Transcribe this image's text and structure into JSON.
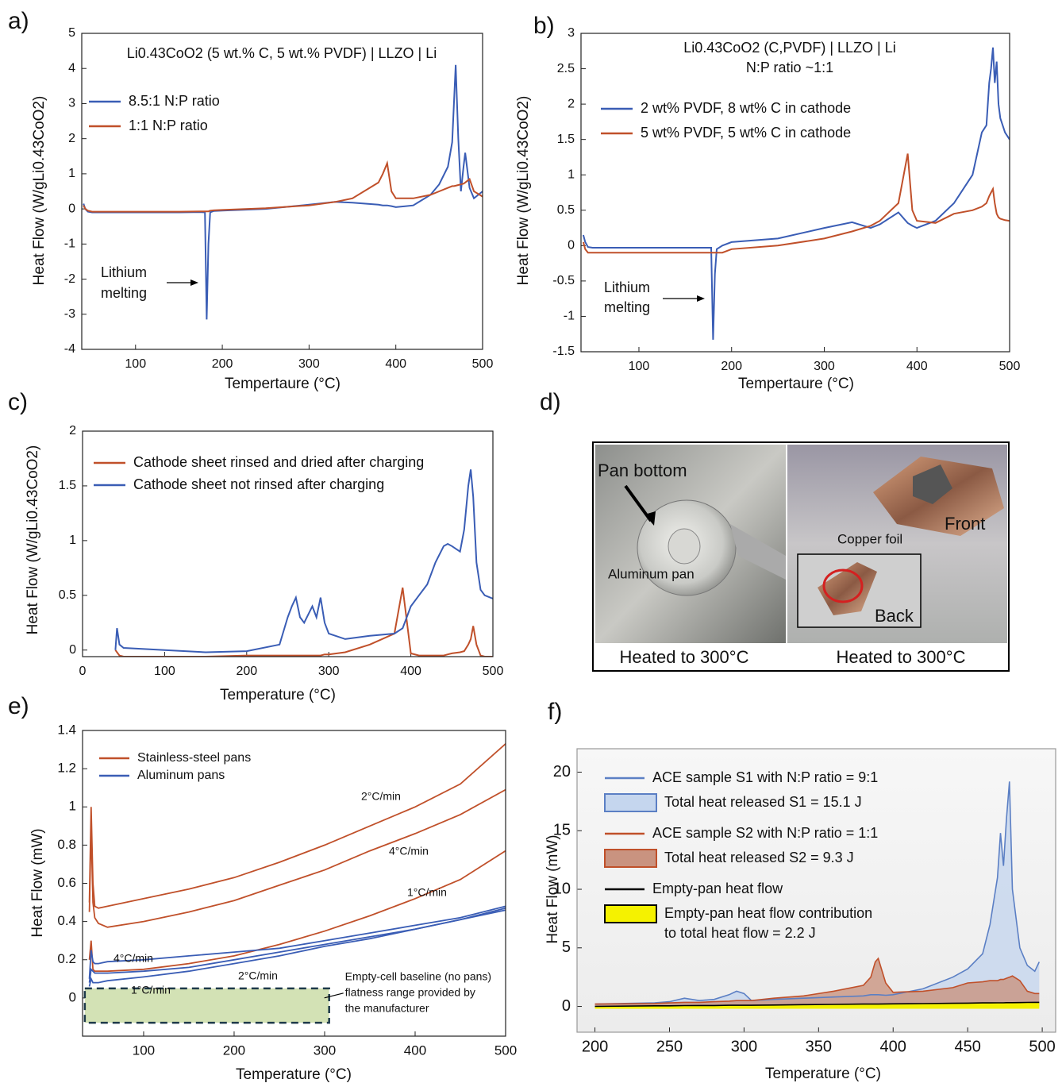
{
  "chart_data": [
    {
      "type": "line",
      "panel": "a)",
      "title": [
        "Li0.43CoO2 (5 wt.% C, 5 wt.% PVDF) | LLZO | Li"
      ],
      "x_label": "Tempertaure (°C)",
      "y_label": "Heat Flow (W/gLi0.43CoO2)",
      "xlim": [
        38,
        500
      ],
      "xticks": [
        100,
        200,
        300,
        400,
        500
      ],
      "ylim": [
        -4,
        5
      ],
      "yticks": [
        -4,
        -3,
        -2,
        -1,
        0,
        1,
        2,
        3,
        4,
        5
      ],
      "legend": "upper left",
      "annotation": [
        "Lithium",
        "melting"
      ],
      "x": [
        40,
        42,
        45,
        50,
        100,
        150,
        175,
        180,
        182,
        184,
        186,
        190,
        200,
        250,
        300,
        330,
        350,
        380,
        385,
        390,
        395,
        400,
        420,
        440,
        450,
        460,
        465,
        467,
        469,
        472,
        475,
        478,
        480,
        485,
        490,
        500
      ],
      "series": [
        {
          "name": "8.5:1 N:P ratio",
          "color": "#3a5db5",
          "values": [
            0.15,
            0,
            -0.08,
            -0.1,
            -0.1,
            -0.1,
            -0.09,
            -0.1,
            -3.15,
            -1,
            -0.1,
            -0.06,
            -0.05,
            0,
            0.12,
            0.2,
            0.18,
            0.12,
            0.1,
            0.1,
            0.08,
            0.05,
            0.1,
            0.4,
            0.7,
            1.2,
            1.9,
            3.0,
            4.1,
            2.0,
            0.5,
            1.2,
            1.6,
            0.6,
            0.3,
            0.5
          ]
        },
        {
          "name": "1:1 N:P ratio",
          "color": "#c0502a",
          "values": [
            0.1,
            0,
            -0.05,
            -0.08,
            -0.08,
            -0.08,
            -0.07,
            -0.07,
            -0.07,
            -0.07,
            -0.05,
            -0.04,
            -0.03,
            0.02,
            0.1,
            0.2,
            0.3,
            0.75,
            1.0,
            1.3,
            0.5,
            0.3,
            0.3,
            0.4,
            0.5,
            0.6,
            0.65,
            0.65,
            0.66,
            0.68,
            0.7,
            0.72,
            0.75,
            0.85,
            0.5,
            0.35
          ]
        }
      ]
    },
    {
      "type": "line",
      "panel": "b)",
      "title": [
        "Li0.43CoO2 (C,PVDF) | LLZO | Li",
        "N:P ratio ~1:1"
      ],
      "x_label": "Tempertaure (°C)",
      "y_label": "Heat Flow (W/gLi0.43CoO2)",
      "xlim": [
        37.5,
        500
      ],
      "xticks": [
        100,
        200,
        300,
        400,
        500
      ],
      "ylim": [
        -1.5,
        3
      ],
      "yticks": [
        -1.5,
        -1,
        -0.5,
        0,
        0.5,
        1,
        1.5,
        2,
        2.5,
        3
      ],
      "legend": "upper left",
      "annotation": [
        "Lithium",
        "melting"
      ],
      "x": [
        40,
        42,
        45,
        50,
        100,
        150,
        175,
        178,
        180,
        182,
        184,
        190,
        200,
        250,
        300,
        330,
        350,
        360,
        380,
        390,
        395,
        400,
        420,
        440,
        460,
        470,
        475,
        478,
        480,
        482,
        484,
        486,
        488,
        490,
        495,
        500
      ],
      "series": [
        {
          "name": "2 wt% PVDF, 8 wt% C in cathode",
          "color": "#3a5db5",
          "values": [
            0.15,
            0.05,
            -0.02,
            -0.03,
            -0.03,
            -0.03,
            -0.03,
            -0.03,
            -1.33,
            -0.4,
            -0.05,
            0,
            0.05,
            0.1,
            0.25,
            0.33,
            0.25,
            0.3,
            0.47,
            0.32,
            0.28,
            0.25,
            0.35,
            0.6,
            1.0,
            1.6,
            1.7,
            2.3,
            2.5,
            2.8,
            2.3,
            2.6,
            2.0,
            1.8,
            1.6,
            1.5
          ]
        },
        {
          "name": "5 wt% PVDF, 5 wt% C in cathode",
          "color": "#c0502a",
          "values": [
            0.05,
            -0.05,
            -0.1,
            -0.1,
            -0.1,
            -0.1,
            -0.1,
            -0.1,
            -0.1,
            -0.1,
            -0.1,
            -0.1,
            -0.05,
            0.0,
            0.1,
            0.2,
            0.28,
            0.35,
            0.6,
            1.3,
            0.5,
            0.35,
            0.32,
            0.45,
            0.5,
            0.55,
            0.6,
            0.7,
            0.75,
            0.8,
            0.6,
            0.45,
            0.4,
            0.38,
            0.36,
            0.35
          ]
        }
      ]
    },
    {
      "type": "line",
      "panel": "c)",
      "x_label": "Temperature (°C)",
      "y_label": "Heat Flow (W/gLi0.43CoO2)",
      "xlim": [
        0,
        500
      ],
      "xticks": [
        0,
        100,
        200,
        300,
        400,
        500
      ],
      "ylim": [
        -0.06,
        2
      ],
      "yticks": [
        0,
        0.5,
        1,
        1.5,
        2
      ],
      "legend": "upper left",
      "x": [
        40,
        42,
        45,
        50,
        100,
        150,
        200,
        240,
        250,
        255,
        260,
        265,
        270,
        280,
        285,
        290,
        295,
        300,
        320,
        350,
        380,
        390,
        400,
        410,
        420,
        430,
        440,
        445,
        450,
        460,
        465,
        470,
        473,
        476,
        480,
        485,
        490,
        500
      ],
      "series": [
        {
          "name": "Cathode sheet rinsed and dried after charging",
          "color": "#c0502a",
          "values": [
            0,
            -0.02,
            -0.05,
            -0.06,
            -0.06,
            -0.06,
            -0.05,
            -0.05,
            -0.05,
            -0.05,
            -0.05,
            -0.05,
            -0.05,
            -0.05,
            -0.05,
            -0.05,
            -0.04,
            -0.04,
            -0.02,
            0.05,
            0.15,
            0.57,
            -0.03,
            -0.05,
            -0.05,
            -0.05,
            -0.05,
            -0.04,
            -0.03,
            -0.02,
            -0.01,
            0.05,
            0.1,
            0.22,
            0.05,
            -0.05,
            -0.06,
            -0.06
          ]
        },
        {
          "name": "Cathode sheet not rinsed after charging",
          "color": "#3a5db5",
          "values": [
            0,
            0.2,
            0.05,
            0.02,
            0,
            -0.02,
            -0.01,
            0.05,
            0.3,
            0.4,
            0.48,
            0.3,
            0.25,
            0.4,
            0.3,
            0.48,
            0.25,
            0.15,
            0.1,
            0.13,
            0.15,
            0.2,
            0.4,
            0.5,
            0.6,
            0.8,
            0.95,
            0.97,
            0.95,
            0.9,
            1.1,
            1.5,
            1.65,
            1.4,
            0.8,
            0.55,
            0.5,
            0.47
          ]
        }
      ]
    },
    {
      "type": "multiline",
      "panel": "e)",
      "x_label": "Temperature (°C)",
      "y_label": "Heat Flow (mW)",
      "xlim": [
        32.5,
        500
      ],
      "xticks": [
        100,
        200,
        300,
        400,
        500
      ],
      "ylim": [
        -0.2,
        1.4
      ],
      "yticks": [
        0,
        0.2,
        0.4,
        0.6,
        0.8,
        1,
        1.2,
        1.4
      ],
      "legend": "upper left",
      "x": [
        40,
        42,
        44,
        46,
        50,
        60,
        100,
        150,
        200,
        250,
        300,
        350,
        400,
        450,
        500
      ],
      "series": [
        {
          "name": "Stainless-steel pans",
          "color": "#c0502a",
          "lines": [
            {
              "label": "2°C/min",
              "values": [
                0.5,
                1.0,
                0.6,
                0.48,
                0.47,
                0.48,
                0.52,
                0.57,
                0.63,
                0.71,
                0.8,
                0.9,
                1.0,
                1.12,
                1.33
              ]
            },
            {
              "label": "4°C/min",
              "values": [
                0.45,
                0.9,
                0.5,
                0.42,
                0.39,
                0.37,
                0.4,
                0.45,
                0.51,
                0.59,
                0.67,
                0.77,
                0.86,
                0.96,
                1.09
              ]
            },
            {
              "label": "1°C/min",
              "values": [
                0.2,
                0.3,
                0.15,
                0.14,
                0.14,
                0.14,
                0.15,
                0.18,
                0.22,
                0.28,
                0.35,
                0.43,
                0.52,
                0.62,
                0.77
              ]
            }
          ]
        },
        {
          "name": "Aluminum pans",
          "color": "#3a5db5",
          "lines": [
            {
              "label": "4°C/min",
              "values": [
                0.1,
                0.25,
                0.19,
                0.18,
                0.18,
                0.19,
                0.2,
                0.22,
                0.24,
                0.26,
                0.3,
                0.34,
                0.38,
                0.42,
                0.48
              ]
            },
            {
              "label": "2°C/min",
              "values": [
                0.08,
                0.15,
                0.14,
                0.13,
                0.13,
                0.13,
                0.14,
                0.16,
                0.2,
                0.24,
                0.28,
                0.32,
                0.36,
                0.41,
                0.47
              ]
            },
            {
              "label": "1°C/min",
              "values": [
                0.06,
                0.1,
                0.08,
                0.08,
                0.08,
                0.09,
                0.11,
                0.14,
                0.18,
                0.22,
                0.27,
                0.31,
                0.36,
                0.41,
                0.46
              ]
            }
          ]
        }
      ],
      "baseline_band": {
        "xlim": [
          35,
          305
        ],
        "ylim": [
          -0.13,
          0.05
        ],
        "color": "#d3e2b5",
        "lines": [
          "Empty-cell baseline (no pans)",
          "flatness range provided by",
          "the manufacturer"
        ]
      }
    },
    {
      "type": "area",
      "panel": "f)",
      "x_label": "Temperature (°C)",
      "y_label": "Heat Flow (mW)",
      "xlim": [
        188,
        509
      ],
      "xticks": [
        200,
        250,
        300,
        350,
        400,
        450,
        500
      ],
      "ylim": [
        -2.2,
        22
      ],
      "yticks": [
        0,
        5,
        10,
        15,
        20
      ],
      "legend": "upper left",
      "x": [
        200,
        240,
        250,
        260,
        270,
        280,
        290,
        295,
        300,
        305,
        320,
        340,
        360,
        380,
        385,
        388,
        390,
        395,
        400,
        420,
        440,
        450,
        460,
        465,
        470,
        472,
        474,
        476,
        478,
        480,
        485,
        490,
        495,
        498
      ],
      "series": [
        {
          "name": "ACE sample S1 with N:P ratio = 9:1",
          "area_name": [
            "Total heat released S1  = 15.1 J"
          ],
          "color": "#5b7fc4",
          "fill_color": "#c5d6ee",
          "values": [
            0.2,
            0.3,
            0.4,
            0.7,
            0.5,
            0.6,
            1.0,
            1.3,
            1.1,
            0.5,
            0.6,
            0.7,
            0.8,
            0.9,
            1.0,
            1.0,
            1.0,
            0.95,
            1.0,
            1.5,
            2.5,
            3.2,
            4.5,
            7,
            11,
            14.8,
            12,
            16,
            19.2,
            10,
            5,
            3.5,
            3.0,
            3.8
          ]
        },
        {
          "name": "ACE sample S2 with N:P ratio = 1:1",
          "area_name": [
            "Total heat released S2 = 9.3 J"
          ],
          "color": "#c0502a",
          "fill_color": "#c99380",
          "values": [
            0.2,
            0.25,
            0.3,
            0.35,
            0.35,
            0.4,
            0.45,
            0.5,
            0.5,
            0.5,
            0.7,
            0.9,
            1.3,
            1.8,
            2.5,
            3.8,
            4.1,
            2.0,
            1.2,
            1.3,
            1.6,
            2.0,
            2.1,
            2.2,
            2.2,
            2.3,
            2.3,
            2.4,
            2.5,
            2.6,
            2.2,
            1.3,
            1.1,
            1.1
          ]
        },
        {
          "name": "Empty-pan heat flow",
          "area_name": [
            "Empty-pan heat flow contribution",
            "to total heat flow = 2.2 J"
          ],
          "color": "#000000",
          "fill_color": "#f5f200",
          "values": [
            0.0,
            0.05,
            0.05,
            0.07,
            0.08,
            0.08,
            0.1,
            0.1,
            0.1,
            0.1,
            0.12,
            0.15,
            0.17,
            0.2,
            0.2,
            0.2,
            0.2,
            0.21,
            0.22,
            0.24,
            0.27,
            0.28,
            0.3,
            0.3,
            0.31,
            0.31,
            0.31,
            0.32,
            0.32,
            0.32,
            0.33,
            0.34,
            0.35,
            0.35
          ]
        }
      ]
    }
  ],
  "photo": {
    "panel": "d)",
    "labels": {
      "pan_bottom": "Pan bottom",
      "aluminum_pan": "Aluminum pan",
      "copper_foil": "Copper foil",
      "front": "Front",
      "back": "Back"
    },
    "captions": [
      "Heated to 300°C",
      "Heated to 300°C"
    ]
  }
}
